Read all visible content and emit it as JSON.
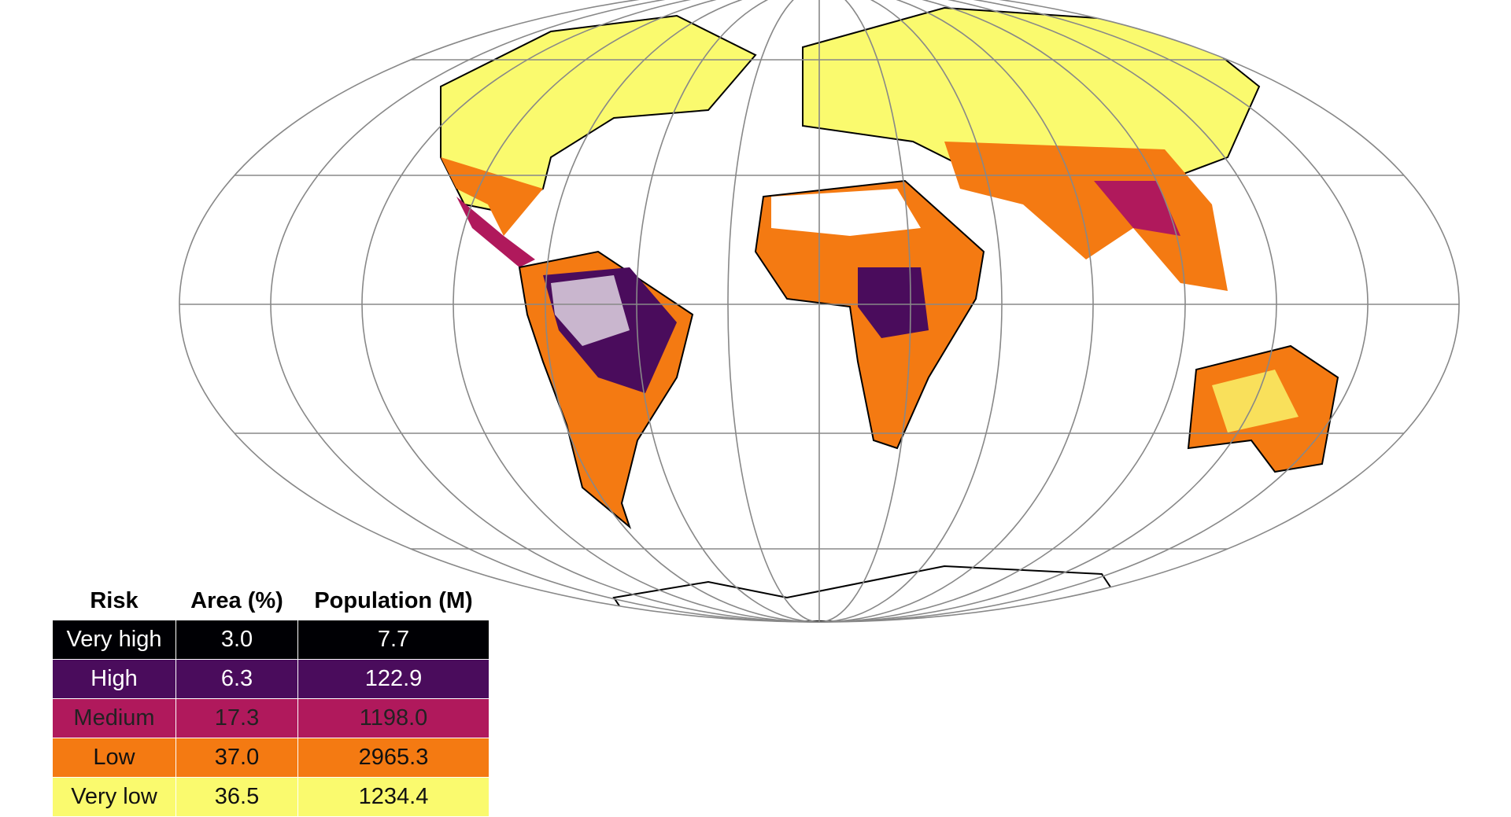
{
  "table": {
    "header": [
      "Risk",
      "Area (%)",
      "Population (M)"
    ],
    "rows": [
      [
        "Very high",
        "3.0",
        "7.7"
      ],
      [
        "High",
        "6.3",
        "122.9"
      ],
      [
        "Medium",
        "17.3",
        "1198.0"
      ],
      [
        "Low",
        "37.0",
        "2965.3"
      ],
      [
        "Very low",
        "36.5",
        "1234.4"
      ]
    ],
    "colors": [
      "#000004",
      "#4a0c5c",
      "#b0195c",
      "#f47a12",
      "#fafa6e"
    ]
  }
}
